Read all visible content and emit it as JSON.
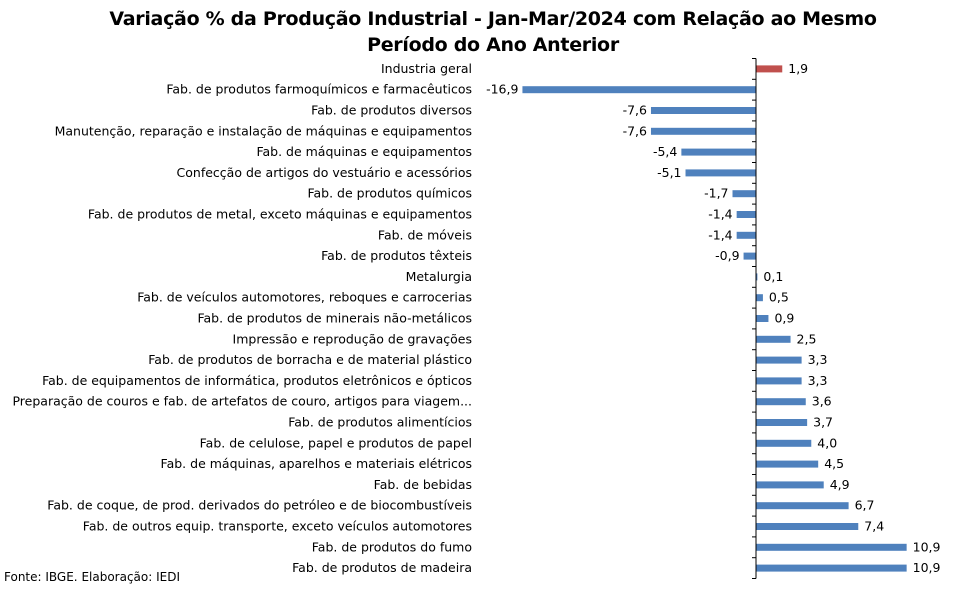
{
  "chart_data": {
    "type": "bar",
    "orientation": "horizontal",
    "title_lines": [
      "Variação % da Produção Industrial - Jan-Mar/2024 com Relação ao Mesmo",
      "Período do Ano Anterior"
    ],
    "xlabel": "",
    "ylabel": "",
    "xlim": [
      -16.9,
      10.9
    ],
    "grid": false,
    "legend": "none",
    "categories": [
      "Industria geral",
      "Fab. de produtos farmoquímicos e farmacêuticos",
      "Fab. de produtos diversos",
      "Manutenção, reparação e instalação de máquinas e equipamentos",
      "Fab. de máquinas e equipamentos",
      "Confecção de artigos do vestuário e acessórios",
      "Fab. de produtos químicos",
      "Fab. de produtos de metal, exceto máquinas e equipamentos",
      "Fab. de móveis",
      "Fab. de produtos têxteis",
      "Metalurgia",
      "Fab. de veículos automotores, reboques e carrocerias",
      "Fab. de produtos de minerais não-metálicos",
      "Impressão e reprodução de gravações",
      "Fab. de produtos de borracha e de material plástico",
      "Fab. de equipamentos de informática, produtos eletrônicos e ópticos",
      "Preparação de couros e fab. de artefatos de couro, artigos para viagem...",
      "Fab. de produtos alimentícios",
      "Fab. de celulose, papel e produtos de papel",
      "Fab. de máquinas, aparelhos e materiais elétricos",
      "Fab. de bebidas",
      "Fab. de coque, de prod. derivados do petróleo e de biocombustíveis",
      "Fab. de outros equip. transporte, exceto veículos automotores",
      "Fab. de produtos do fumo",
      "Fab. de produtos de madeira"
    ],
    "values": [
      1.9,
      -16.9,
      -7.6,
      -7.6,
      -5.4,
      -5.1,
      -1.7,
      -1.4,
      -1.4,
      -0.9,
      0.1,
      0.5,
      0.9,
      2.5,
      3.3,
      3.3,
      3.6,
      3.7,
      4.0,
      4.5,
      4.9,
      6.7,
      7.4,
      10.9,
      10.9
    ],
    "data_labels": [
      "1,9",
      "-16,9",
      "-7,6",
      "-7,6",
      "-5,4",
      "-5,1",
      "-1,7",
      "-1,4",
      "-1,4",
      "-0,9",
      "0,1",
      "0,5",
      "0,9",
      "2,5",
      "3,3",
      "3,3",
      "3,6",
      "3,7",
      "4,0",
      "4,5",
      "4,9",
      "6,7",
      "7,4",
      "10,9",
      "10,9"
    ],
    "highlight_index": 0,
    "colors": {
      "bar": "#4f81bd",
      "highlight": "#c0504d",
      "axis": "#000000"
    }
  },
  "source_note": "Fonte: IBGE. Elaboração: IEDI"
}
